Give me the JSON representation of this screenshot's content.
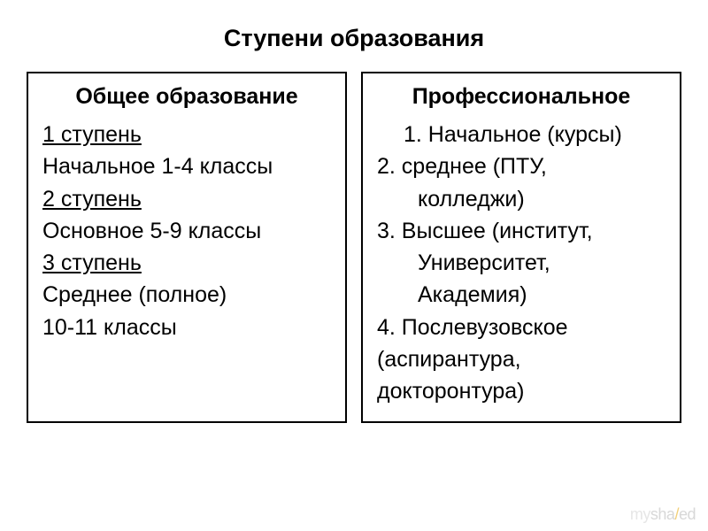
{
  "title": "Ступени образования",
  "left": {
    "heading": "Общее образование",
    "lines": [
      {
        "text": "1 ступень",
        "underline": true
      },
      {
        "text": "Начальное 1-4 классы",
        "underline": false
      },
      {
        "text": "2 ступень",
        "underline": true
      },
      {
        "text": "Основное 5-9 классы",
        "underline": false
      },
      {
        "text": "3 ступень",
        "underline": true
      },
      {
        "text": "Среднее (полное)",
        "underline": false
      },
      {
        "text": "10-11 классы",
        "underline": false
      }
    ]
  },
  "right": {
    "heading": "Профессиональное",
    "lines": [
      {
        "text": "1.  Начальное (курсы)",
        "indent": "small"
      },
      {
        "text": "2. среднее (ПТУ,",
        "indent": "none"
      },
      {
        "text": "колледжи)",
        "indent": "large"
      },
      {
        "text": "3. Высшее (институт,",
        "indent": "none"
      },
      {
        "text": "Университет,",
        "indent": "large"
      },
      {
        "text": "Академия)",
        "indent": "large"
      },
      {
        "text": "4. Послевузовское",
        "indent": "none"
      },
      {
        "text": "(аспирантура,",
        "indent": "none"
      },
      {
        "text": "докторонтура)",
        "indent": "none"
      }
    ]
  },
  "watermark": {
    "my": "my",
    "sha": "sha",
    "slash": "/",
    "ed": "ed"
  },
  "style": {
    "background_color": "#ffffff",
    "text_color": "#000000",
    "border_color": "#000000",
    "border_width": 2,
    "title_fontsize": 27,
    "heading_fontsize": 25,
    "body_fontsize": 25,
    "font_family": "Arial",
    "watermark_color": "#d8d8d8",
    "watermark_slash_color": "#f2d07a"
  }
}
